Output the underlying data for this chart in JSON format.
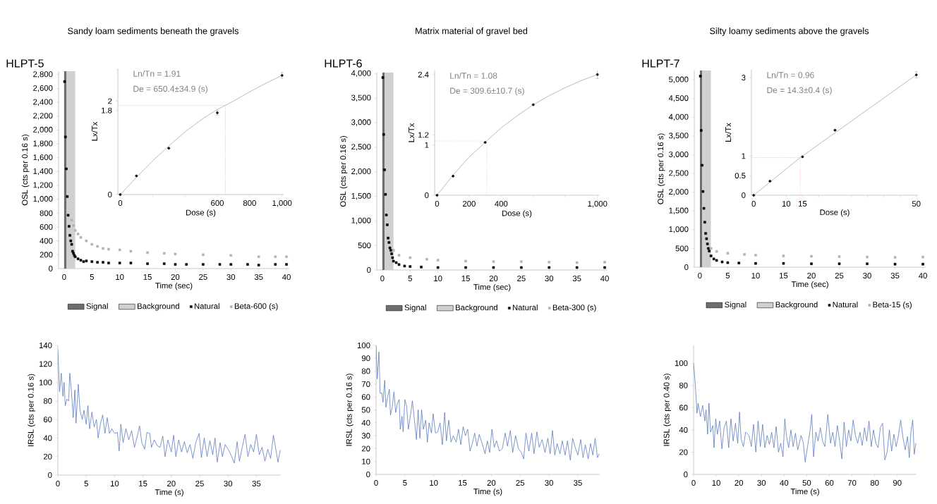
{
  "chart_data": [
    {
      "type": "scatter",
      "title": "Sandy loam sediments beneath the gravels",
      "subtitle": "HLPT-5",
      "xlabel": "Time (sec)",
      "ylabel": "OSL (cts per 0.16 s)",
      "xlim": [
        -1,
        40.5
      ],
      "ylim": [
        0,
        2850
      ],
      "xticks": [
        0,
        5,
        10,
        15,
        20,
        25,
        30,
        35,
        40
      ],
      "yticks": [
        0,
        200,
        400,
        600,
        800,
        {
          "value": 1000,
          "label": "1,000"
        },
        {
          "value": 1200,
          "label": "1,200"
        },
        {
          "value": 1400,
          "label": "1,400"
        },
        {
          "value": 1600,
          "label": "1,600"
        },
        {
          "value": 1800,
          "label": "1,800"
        },
        {
          "value": 2000,
          "label": "2,000"
        },
        {
          "value": 2200,
          "label": "2,200"
        },
        {
          "value": 2400,
          "label": "2,400"
        },
        {
          "value": 2600,
          "label": "2,600"
        },
        {
          "value": 2800,
          "label": "2,800"
        }
      ],
      "legend": "bottom",
      "marker": "square",
      "bands": [
        {
          "axis": "x",
          "from": 0,
          "to": 0.4,
          "label": "Signal",
          "color": "#6e6e6e"
        },
        {
          "axis": "x",
          "from": 0.4,
          "to": 2.0,
          "label": "Background",
          "color": "#d0d0d0"
        }
      ],
      "series": [
        {
          "name": "Natural",
          "color": "#000000",
          "x": [
            0.08,
            0.24,
            0.4,
            0.56,
            0.72,
            0.88,
            1.04,
            1.2,
            1.36,
            1.52,
            1.68,
            1.84,
            2.0,
            2.5,
            3,
            3.5,
            4,
            5,
            6,
            7,
            8,
            10,
            12,
            15,
            18,
            20,
            22,
            25,
            28,
            30,
            33,
            35,
            38,
            40
          ],
          "values": [
            2700,
            1900,
            1440,
            1040,
            770,
            610,
            480,
            400,
            350,
            250,
            220,
            190,
            170,
            140,
            120,
            100,
            110,
            100,
            90,
            90,
            80,
            80,
            80,
            70,
            70,
            60,
            60,
            60,
            60,
            60,
            60,
            50,
            60,
            60
          ]
        },
        {
          "name": "Beta-600 (s)",
          "color": "#b4b4b4",
          "x": [
            1.36,
            1.68,
            2.0,
            2.5,
            3,
            4,
            5,
            6,
            7,
            8,
            10,
            12,
            15,
            18,
            20,
            25,
            30,
            35,
            38,
            40
          ],
          "values": [
            700,
            620,
            550,
            500,
            450,
            400,
            350,
            320,
            290,
            280,
            270,
            250,
            230,
            220,
            210,
            200,
            190,
            170,
            170,
            170
          ]
        }
      ]
    },
    {
      "type": "scatter",
      "xlabel": "Dose (s)",
      "ylabel": "Lx/Tx",
      "annotations": [
        "Ln/Tn = 1.91",
        "De = 650.4±34.9 (s)"
      ],
      "xlim": [
        -15,
        1010
      ],
      "ylim": [
        0,
        2.7
      ],
      "xticks": [
        0,
        {
          "value": 200,
          "label": null
        },
        {
          "value": 400,
          "label": null
        },
        600,
        800,
        {
          "value": 1000,
          "label": "1,000"
        }
      ],
      "yticks": [
        0,
        1.8,
        2
      ],
      "ref_lines": [
        {
          "axis": "y",
          "value": 1.91,
          "color": "#ff9999",
          "line_style": "dotted"
        },
        {
          "axis": "x",
          "value": 650.4,
          "color": "#ff9999",
          "line_style": "dotted"
        }
      ],
      "series": [
        {
          "color": "#000000",
          "marker": "circle",
          "x": [
            0,
            100,
            300,
            600,
            1000
          ],
          "values": [
            0,
            0.4,
            0.99,
            1.75,
            2.55
          ],
          "errors": [
            null,
            null,
            null,
            0.05,
            0.06
          ]
        },
        {
          "type": "line",
          "color": "#a0a0a0",
          "x": [
            0,
            100,
            200,
            300,
            400,
            500,
            600,
            650.4,
            700,
            800,
            900,
            1000
          ],
          "values": [
            0,
            0.37,
            0.72,
            1.04,
            1.34,
            1.6,
            1.82,
            1.91,
            2.0,
            2.2,
            2.38,
            2.55
          ]
        }
      ]
    },
    {
      "type": "scatter",
      "title": "Matrix material of gravel bed",
      "subtitle": "HLPT-6",
      "xlabel": "Time (sec)",
      "ylabel": "OSL (cts per 0.16 s)",
      "xlim": [
        -1,
        40.5
      ],
      "ylim": [
        0,
        4020
      ],
      "xticks": [
        0,
        5,
        10,
        15,
        20,
        25,
        30,
        35,
        40
      ],
      "yticks": [
        0,
        500,
        {
          "value": 1000,
          "label": "1,000"
        },
        {
          "value": 1500,
          "label": "1,500"
        },
        {
          "value": 2000,
          "label": "2,000"
        },
        {
          "value": 2500,
          "label": "2,500"
        },
        {
          "value": 3000,
          "label": "3,000"
        },
        {
          "value": 3500,
          "label": "3,500"
        },
        {
          "value": 4000,
          "label": "4,000"
        }
      ],
      "legend": "bottom",
      "marker": "square",
      "bands": [
        {
          "axis": "x",
          "from": 0,
          "to": 0.4,
          "label": "Signal",
          "color": "#6e6e6e"
        },
        {
          "axis": "x",
          "from": 0.4,
          "to": 2.0,
          "label": "Background",
          "color": "#d0d0d0"
        }
      ],
      "series": [
        {
          "name": "Natural",
          "color": "#000000",
          "x": [
            0.08,
            0.24,
            0.4,
            0.56,
            0.72,
            0.88,
            1.04,
            1.2,
            1.36,
            1.52,
            1.68,
            1.84,
            2.0,
            2.5,
            3,
            4,
            5,
            7,
            10,
            15,
            20,
            25,
            30,
            35,
            40
          ],
          "values": [
            3920,
            2760,
            2040,
            1540,
            1120,
            920,
            650,
            560,
            450,
            400,
            330,
            250,
            180,
            150,
            110,
            80,
            70,
            60,
            50,
            50,
            50,
            50,
            50,
            50,
            50
          ]
        },
        {
          "name": "Beta-300 (s)",
          "color": "#b4b4b4",
          "x": [
            2.0,
            3,
            5,
            8,
            10,
            15,
            20,
            25,
            30,
            35,
            40
          ],
          "values": [
            400,
            300,
            250,
            220,
            200,
            180,
            170,
            170,
            160,
            150,
            160
          ]
        }
      ]
    },
    {
      "type": "scatter",
      "xlabel": "Dose (s)",
      "ylabel": "Lx/Tx",
      "annotations": [
        "Ln/Tn = 1.08",
        "De = 309.6±10.7 (s)"
      ],
      "xlim": [
        -15,
        1010
      ],
      "ylim": [
        0,
        2.48
      ],
      "xticks": [
        0,
        200,
        400,
        {
          "value": 600,
          "label": null
        },
        {
          "value": 800,
          "label": null
        },
        {
          "value": 1000,
          "label": "1,000"
        }
      ],
      "yticks": [
        0,
        1,
        1.2,
        2.4
      ],
      "ref_lines": [
        {
          "axis": "y",
          "value": 1.08,
          "color": "#ff9999",
          "line_style": "dotted"
        },
        {
          "axis": "x",
          "value": 309.6,
          "color": "#ff9999",
          "line_style": "dotted"
        }
      ],
      "series": [
        {
          "color": "#000000",
          "marker": "circle",
          "x": [
            0,
            100,
            300,
            600,
            1000
          ],
          "values": [
            0,
            0.38,
            1.05,
            1.8,
            2.4
          ],
          "errors": [
            null,
            null,
            null,
            null,
            0.08
          ]
        },
        {
          "type": "line",
          "color": "#a0a0a0",
          "x": [
            0,
            100,
            200,
            309.6,
            400,
            500,
            600,
            700,
            800,
            900,
            1000
          ],
          "values": [
            0,
            0.4,
            0.76,
            1.08,
            1.34,
            1.58,
            1.8,
            1.98,
            2.14,
            2.28,
            2.4
          ]
        }
      ]
    },
    {
      "type": "scatter",
      "title": "Silty loamy sediments above the gravels",
      "subtitle": "HLPT-7",
      "xlabel": "Time (sec)",
      "ylabel": "OSL (cts per 0.16 s)",
      "xlim": [
        -1,
        40.5
      ],
      "ylim": [
        0,
        5250
      ],
      "xticks": [
        0,
        5,
        10,
        15,
        20,
        25,
        30,
        35,
        40
      ],
      "yticks": [
        0,
        500,
        {
          "value": 1000,
          "label": "1,000"
        },
        {
          "value": 1500,
          "label": "1,500"
        },
        {
          "value": 2000,
          "label": "2,000"
        },
        {
          "value": 2500,
          "label": "2,500"
        },
        {
          "value": 3000,
          "label": "3,000"
        },
        {
          "value": 3500,
          "label": "3,500"
        },
        {
          "value": 4000,
          "label": "4,000"
        },
        {
          "value": 4500,
          "label": "4,500"
        },
        {
          "value": 5000,
          "label": "5,000"
        }
      ],
      "legend": "bottom",
      "marker": "square",
      "bands": [
        {
          "axis": "x",
          "from": 0,
          "to": 0.4,
          "label": "Signal",
          "color": "#6e6e6e"
        },
        {
          "axis": "x",
          "from": 0.4,
          "to": 2.0,
          "label": "Background",
          "color": "#d0d0d0"
        }
      ],
      "series": [
        {
          "name": "Natural",
          "color": "#000000",
          "x": [
            0.08,
            0.24,
            0.4,
            0.56,
            0.72,
            0.88,
            1.04,
            1.2,
            1.36,
            1.52,
            1.68,
            2,
            2.5,
            3,
            4,
            5,
            7,
            10,
            15,
            20,
            25,
            30,
            35,
            40
          ],
          "values": [
            5100,
            3650,
            2720,
            2020,
            1570,
            1200,
            900,
            760,
            620,
            500,
            430,
            300,
            220,
            180,
            140,
            120,
            110,
            100,
            100,
            90,
            90,
            90,
            80,
            80
          ]
        },
        {
          "name": "Beta-15 (s)",
          "color": "#b4b4b4",
          "x": [
            2,
            3,
            5,
            8,
            10,
            15,
            20,
            25,
            30,
            35,
            40
          ],
          "values": [
            500,
            420,
            370,
            340,
            320,
            300,
            290,
            280,
            270,
            260,
            270
          ]
        }
      ]
    },
    {
      "type": "scatter",
      "xlabel": "Dose (s)",
      "ylabel": "Lx/Tx",
      "annotations": [
        "Ln/Tn = 0.96",
        "De = 14.3±0.4 (s)"
      ],
      "xlim": [
        -0.7,
        50.5
      ],
      "ylim": [
        0,
        3.2
      ],
      "xticks": [
        0,
        10,
        15,
        {
          "value": 20,
          "label": null
        },
        {
          "value": 30,
          "label": null
        },
        {
          "value": 35,
          "label": null
        },
        {
          "value": 40,
          "label": null
        },
        {
          "value": 45,
          "label": null
        },
        50
      ],
      "yticks": [
        0,
        0.5,
        1,
        3
      ],
      "ref_lines": [
        {
          "axis": "y",
          "value": 0.96,
          "color": "#ff9999",
          "line_style": "dotted"
        },
        {
          "axis": "x",
          "value": 14.3,
          "color": "#ff9999",
          "line_style": "dotted"
        }
      ],
      "series": [
        {
          "color": "#000000",
          "marker": "circle",
          "x": [
            0,
            5,
            15,
            25,
            50
          ],
          "values": [
            0,
            0.36,
            0.98,
            1.66,
            3.07
          ],
          "errors": [
            null,
            null,
            null,
            null,
            0.08
          ]
        },
        {
          "type": "line",
          "color": "#a0a0a0",
          "x": [
            0,
            14.3,
            50
          ],
          "values": [
            0,
            0.96,
            3.07
          ]
        }
      ]
    },
    {
      "type": "line",
      "xlabel": "Time (s)",
      "ylabel": "IRSL (cts per 0.16 s)",
      "xlim": [
        0,
        39.3
      ],
      "ylim": [
        0,
        140
      ],
      "xticks": [
        0,
        5,
        10,
        15,
        20,
        25,
        30,
        35
      ],
      "yticks": [
        0,
        20,
        40,
        60,
        80,
        100,
        120,
        140
      ],
      "series": [
        {
          "color": "#4f71b8",
          "x": [
            0,
            0.3,
            0.6,
            0.9,
            1.1,
            1.3,
            1.6,
            1.9,
            2.1,
            2.4,
            2.7,
            3.0,
            3.2,
            3.6,
            3.9,
            4.3,
            4.6,
            5.0,
            5.3,
            5.6,
            6.0,
            6.4,
            6.8,
            7.1,
            7.5,
            7.9,
            8.3,
            8.7,
            9.1,
            9.5,
            10.0,
            10.5,
            10.8,
            11.1,
            11.5,
            12.0,
            12.5,
            13.0,
            13.5,
            14.0,
            14.4,
            14.8,
            15.3,
            15.7,
            16.2,
            16.5,
            17.0,
            17.5,
            18.0,
            18.5,
            18.9,
            19.4,
            20.0,
            20.4,
            20.8,
            21.3,
            21.8,
            22.3,
            22.8,
            23.3,
            23.8,
            24.3,
            24.9,
            25.3,
            25.8,
            26.3,
            26.8,
            27.3,
            27.7,
            28.1,
            28.6,
            29.0,
            29.5,
            30.0,
            30.5,
            31.1,
            31.6,
            32.0,
            32.5,
            33.0,
            33.5,
            34.0,
            34.5,
            35.0,
            35.5,
            36.0,
            36.5,
            37.0,
            37.5,
            38.0,
            38.5,
            38.8,
            39.2
          ],
          "values": [
            135,
            90,
            110,
            85,
            100,
            75,
            82,
            80,
            110,
            90,
            62,
            92,
            56,
            98,
            70,
            60,
            70,
            55,
            75,
            50,
            68,
            52,
            60,
            40,
            55,
            65,
            45,
            62,
            45,
            50,
            45,
            46,
            26,
            55,
            35,
            50,
            38,
            48,
            30,
            42,
            53,
            35,
            28,
            46,
            45,
            30,
            38,
            32,
            30,
            42,
            20,
            38,
            25,
            43,
            20,
            38,
            25,
            36,
            24,
            33,
            18,
            35,
            45,
            19,
            40,
            20,
            37,
            22,
            40,
            14,
            35,
            20,
            33,
            28,
            22,
            13,
            36,
            15,
            30,
            44,
            20,
            33,
            25,
            44,
            22,
            30,
            15,
            28,
            18,
            43,
            25,
            14,
            27
          ]
        }
      ]
    },
    {
      "type": "line",
      "xlabel": "Time (s)",
      "ylabel": "IRSL (cts per 0.16 s)",
      "xlim": [
        0,
        38.8
      ],
      "ylim": [
        0,
        100
      ],
      "xticks": [
        0,
        5,
        10,
        15,
        20,
        25,
        30,
        35
      ],
      "yticks": [
        0,
        10,
        20,
        30,
        40,
        50,
        60,
        70,
        80,
        90,
        100
      ],
      "series": [
        {
          "color": "#4f71b8",
          "x": [
            0,
            0.2,
            0.5,
            0.7,
            1.0,
            1.2,
            1.5,
            1.7,
            2.0,
            2.3,
            2.5,
            2.8,
            3.1,
            3.4,
            3.7,
            4.0,
            4.2,
            4.5,
            4.7,
            5.0,
            5.3,
            5.6,
            6.0,
            6.3,
            6.7,
            7.0,
            7.3,
            7.6,
            7.9,
            8.2,
            8.6,
            8.9,
            9.2,
            9.6,
            9.9,
            10.3,
            10.7,
            11.1,
            11.5,
            11.9,
            12.2,
            12.6,
            13.0,
            13.4,
            13.9,
            14.3,
            14.7,
            15.1,
            15.5,
            15.9,
            16.3,
            16.7,
            17.1,
            17.5,
            17.9,
            18.4,
            18.9,
            19.3,
            19.7,
            20.1,
            20.5,
            20.9,
            21.4,
            21.9,
            22.4,
            22.8,
            23.3,
            23.7,
            24.2,
            24.7,
            25.2,
            25.6,
            26.0,
            26.5,
            27.0,
            27.4,
            27.9,
            28.3,
            28.8,
            29.3,
            29.8,
            30.2,
            30.6,
            31.0,
            31.4,
            31.9,
            32.3,
            32.8,
            33.2,
            33.7,
            34.1,
            34.6,
            35.0,
            35.5,
            35.9,
            36.3,
            36.8,
            37.2,
            37.6,
            38.0,
            38.4,
            38.7
          ],
          "values": [
            100,
            74,
            95,
            63,
            63,
            56,
            73,
            52,
            60,
            66,
            46,
            52,
            64,
            48,
            55,
            58,
            35,
            45,
            33,
            58,
            53,
            35,
            47,
            57,
            40,
            27,
            50,
            28,
            50,
            35,
            42,
            25,
            40,
            32,
            47,
            32,
            33,
            40,
            23,
            48,
            26,
            42,
            25,
            30,
            25,
            35,
            23,
            37,
            30,
            35,
            18,
            24,
            32,
            22,
            31,
            24,
            16,
            26,
            17,
            35,
            21,
            26,
            18,
            20,
            32,
            22,
            34,
            17,
            30,
            20,
            17,
            12,
            32,
            18,
            32,
            16,
            33,
            21,
            27,
            17,
            28,
            16,
            34,
            15,
            24,
            16,
            26,
            15,
            26,
            11,
            28,
            20,
            15,
            27,
            13,
            23,
            12,
            24,
            15,
            28,
            13,
            16
          ]
        }
      ]
    },
    {
      "type": "line",
      "xlabel": "Time (s)",
      "ylabel": "IRSL (cts per 0.40 s)",
      "xlim": [
        0,
        98.5
      ],
      "ylim": [
        0,
        116
      ],
      "xticks": [
        0,
        10,
        20,
        30,
        40,
        50,
        60,
        70,
        80,
        90
      ],
      "yticks": [
        0,
        20,
        40,
        60,
        80,
        100
      ],
      "series": [
        {
          "color": "#4f71b8",
          "x": [
            0,
            0.8,
            1.5,
            2,
            3,
            4,
            5,
            5.5,
            6.2,
            6.8,
            7.5,
            8.5,
            9,
            9.8,
            10.5,
            11.5,
            12.5,
            13.5,
            14.5,
            15.5,
            16.5,
            17.5,
            18.5,
            19.5,
            20.3,
            21,
            22,
            23,
            24.5,
            25.5,
            26.5,
            27.5,
            28.5,
            29.5,
            30.5,
            31.5,
            32.5,
            33.5,
            34.5,
            35.5,
            36.5,
            37.5,
            38.5,
            39.5,
            40.3,
            41,
            42,
            43,
            44,
            45,
            46,
            47.5,
            48.5,
            49.3,
            50.5,
            51.5,
            52.2,
            53,
            54,
            55,
            56,
            57,
            58,
            59.3,
            60.5,
            61.5,
            62.5,
            63.5,
            64.5,
            65.5,
            66.5,
            67.5,
            68.5,
            69.5,
            70.5,
            71.5,
            72.5,
            73.5,
            74.5,
            75.5,
            76.5,
            77.5,
            78.5,
            79.5,
            80.5,
            81.5,
            82.5,
            83.5,
            84.5,
            85.5,
            86.5,
            87.5,
            88.5,
            89.5,
            90.5,
            91.5,
            92.5,
            93.5,
            94.5,
            95.3,
            96,
            96.8,
            97.5,
            98.2
          ],
          "values": [
            100,
            80,
            55,
            64,
            52,
            62,
            48,
            58,
            36,
            64,
            38,
            44,
            24,
            50,
            36,
            48,
            23,
            42,
            48,
            24,
            50,
            30,
            46,
            28,
            56,
            32,
            25,
            38,
            35,
            25,
            45,
            20,
            48,
            25,
            45,
            24,
            35,
            27,
            38,
            24,
            43,
            20,
            28,
            16,
            50,
            35,
            24,
            40,
            25,
            37,
            22,
            35,
            28,
            11,
            27,
            40,
            54,
            16,
            38,
            30,
            42,
            30,
            25,
            54,
            28,
            38,
            25,
            44,
            30,
            14,
            47,
            25,
            40,
            30,
            49,
            35,
            28,
            38,
            26,
            42,
            30,
            48,
            25,
            40,
            28,
            24,
            42,
            46,
            13,
            20,
            40,
            21,
            36,
            25,
            35,
            49,
            33,
            22,
            34,
            15,
            38,
            49,
            18,
            28
          ]
        }
      ]
    }
  ]
}
